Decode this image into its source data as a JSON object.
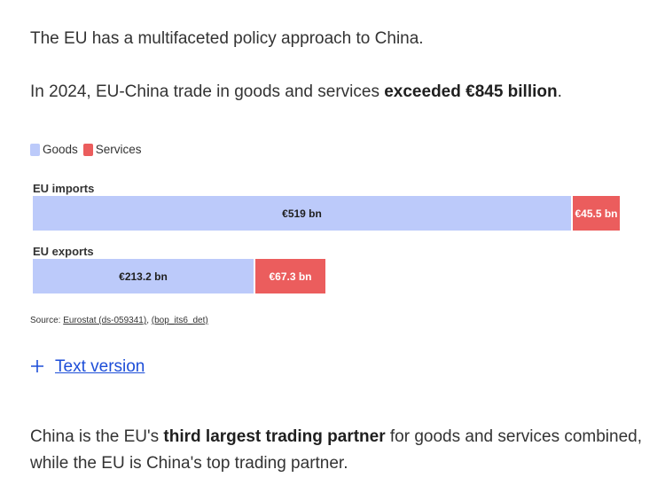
{
  "intro": "The EU has a multifaceted policy approach to China.",
  "trade_sentence": {
    "prefix": "In 2024, EU-China trade in goods and services ",
    "bold": "exceeded €845 billion",
    "suffix": "."
  },
  "colors": {
    "goods": "#bccafa",
    "services": "#eb5d5d",
    "link": "#1d4ed8"
  },
  "chart_data": {
    "type": "bar",
    "orientation": "horizontal",
    "stacked": true,
    "title": "",
    "categories": [
      "EU imports",
      "EU exports"
    ],
    "series": [
      {
        "name": "Goods",
        "values": [
          519,
          213.2
        ],
        "labels": [
          "€519 bn",
          "€213.2 bn"
        ]
      },
      {
        "name": "Services",
        "values": [
          45.5,
          67.3
        ],
        "labels": [
          "€45.5 bn",
          "€67.3 bn"
        ]
      }
    ],
    "unit": "€ bn",
    "xlim": [
      0,
      564.5
    ],
    "legend": [
      "Goods",
      "Services"
    ],
    "legend_position": "top-left"
  },
  "source": {
    "prefix": "Source: ",
    "link1": "Eurostat (ds-059341)",
    "separator": ", ",
    "link2": "(bop_its6_det)"
  },
  "text_version": {
    "icon": "plus-icon",
    "label": "Text version"
  },
  "closing": {
    "prefix": "China is the EU's ",
    "bold": "third largest trading partner",
    "suffix": " for goods and services combined, while the EU is China's top trading partner."
  }
}
